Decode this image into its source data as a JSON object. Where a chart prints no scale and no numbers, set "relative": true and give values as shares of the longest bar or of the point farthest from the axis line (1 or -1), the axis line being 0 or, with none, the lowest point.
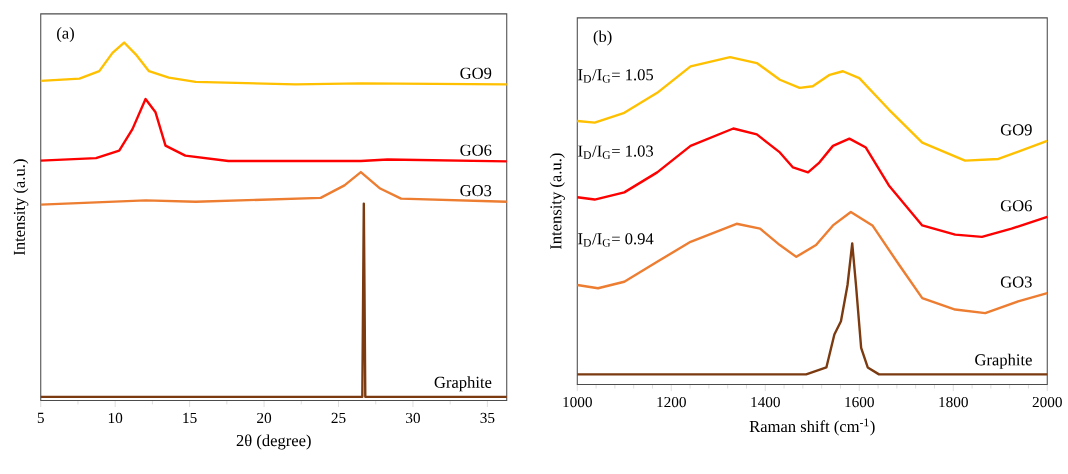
{
  "chart_data": [
    {
      "type": "line",
      "relative": true,
      "xlabel": "2θ (degree)",
      "ylabel": "Intensity (a.u.)",
      "xlim": [
        5,
        36.3
      ],
      "xticks": [
        5,
        10,
        15,
        20,
        25,
        30,
        35
      ],
      "annotations": [
        "(a)"
      ],
      "series": [
        {
          "name": "GO9",
          "color": "#ffc000",
          "x": [
            5,
            7.6,
            8.93,
            9.82,
            10.6,
            11.38,
            12.27,
            13.6,
            15.4,
            22.1,
            26.5,
            36.3
          ],
          "values": [
            0.893,
            0.899,
            0.92,
            0.971,
            1.0,
            0.967,
            0.92,
            0.902,
            0.89,
            0.883,
            0.886,
            0.883
          ]
        },
        {
          "name": "GO6",
          "color": "#ff0000",
          "x": [
            5,
            8.71,
            10.27,
            11.16,
            12.04,
            12.71,
            13.38,
            14.71,
            17.6,
            26.5,
            28.3,
            36.3
          ],
          "values": [
            0.67,
            0.677,
            0.698,
            0.758,
            0.842,
            0.805,
            0.712,
            0.684,
            0.669,
            0.669,
            0.673,
            0.668
          ]
        },
        {
          "name": "GO3",
          "color": "#ed7d31",
          "x": [
            5,
            12.04,
            15.4,
            23.8,
            25.4,
            26.5,
            27.8,
            29.2,
            36.3
          ],
          "values": [
            0.547,
            0.559,
            0.555,
            0.566,
            0.601,
            0.638,
            0.592,
            0.564,
            0.555
          ]
        },
        {
          "name": "Graphite",
          "color": "#7b3a10",
          "x": [
            5,
            26.6,
            26.7,
            26.8,
            36.3
          ],
          "values": [
            0.01,
            0.01,
            0.55,
            0.01,
            0.01
          ]
        }
      ]
    },
    {
      "type": "line",
      "relative": true,
      "xlabel": "Raman shift (cm$^{-1}$)",
      "ylabel": "Intensity (a.u.)",
      "xlim": [
        1000,
        2000
      ],
      "xticks": [
        1000,
        1200,
        1400,
        1600,
        1800,
        2000
      ],
      "annotations": [
        "(b)",
        "I$_{D}$/I$_{G}$= 1.05",
        "I$_{D}$/I$_{G}$= 1.03",
        "I$_{D}$/I$_{G}$= 0.94"
      ],
      "series": [
        {
          "name": "GO9",
          "color": "#ffc000",
          "x": [
            1000,
            1037,
            1100,
            1170,
            1241,
            1325,
            1382,
            1431,
            1473,
            1501,
            1537,
            1565,
            1600,
            1663,
            1734,
            1825,
            1896,
            2000
          ],
          "values": [
            0.805,
            0.8,
            0.83,
            0.891,
            0.972,
            1.0,
            0.982,
            0.931,
            0.906,
            0.911,
            0.946,
            0.957,
            0.936,
            0.84,
            0.739,
            0.684,
            0.689,
            0.744
          ]
        },
        {
          "name": "GO6",
          "color": "#ff0000",
          "x": [
            1000,
            1037,
            1100,
            1170,
            1241,
            1332,
            1382,
            1431,
            1459,
            1491,
            1515,
            1544,
            1579,
            1614,
            1663,
            1734,
            1804,
            1861,
            1924,
            2000
          ],
          "values": [
            0.572,
            0.565,
            0.587,
            0.648,
            0.729,
            0.782,
            0.764,
            0.709,
            0.663,
            0.648,
            0.678,
            0.729,
            0.751,
            0.724,
            0.608,
            0.486,
            0.458,
            0.451,
            0.476,
            0.512
          ]
        },
        {
          "name": "GO3",
          "color": "#ed7d31",
          "x": [
            1000,
            1044,
            1100,
            1170,
            1241,
            1339,
            1389,
            1431,
            1466,
            1508,
            1544,
            1582,
            1628,
            1685,
            1734,
            1804,
            1868,
            1938,
            2000
          ],
          "values": [
            0.304,
            0.294,
            0.314,
            0.375,
            0.436,
            0.491,
            0.476,
            0.426,
            0.39,
            0.426,
            0.486,
            0.527,
            0.486,
            0.365,
            0.264,
            0.229,
            0.218,
            0.254,
            0.279
          ]
        },
        {
          "name": "Graphite",
          "color": "#7b3a10",
          "x": [
            1000,
            1487,
            1530,
            1547,
            1561,
            1575,
            1585,
            1593,
            1604,
            1618,
            1642,
            2000
          ],
          "values": [
            0.031,
            0.031,
            0.052,
            0.153,
            0.193,
            0.304,
            0.431,
            0.304,
            0.112,
            0.052,
            0.031,
            0.031
          ]
        }
      ]
    }
  ]
}
